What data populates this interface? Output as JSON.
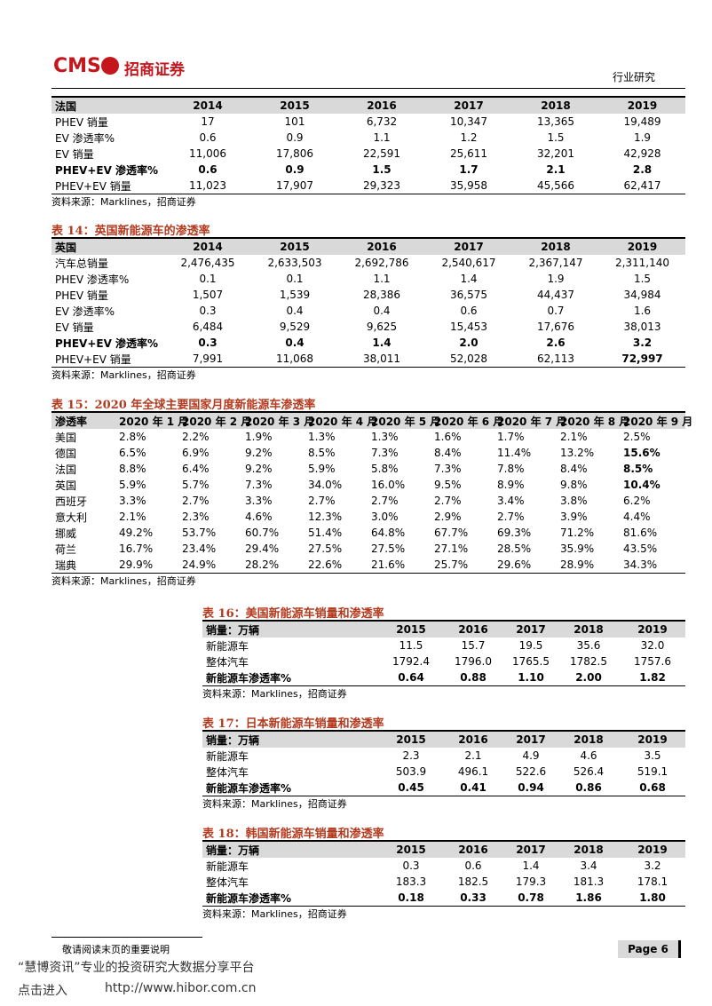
{
  "header": {
    "logo": "CMS",
    "company": "招商证券",
    "section": "行业研究"
  },
  "tables": [
    {
      "header": [
        "法国",
        "2014",
        "2015",
        "2016",
        "2017",
        "2018",
        "2019"
      ],
      "rows": [
        {
          "label": "PHEV 销量",
          "cells": [
            "17",
            "101",
            "6,732",
            "10,347",
            "13,365",
            "19,489"
          ]
        },
        {
          "label": "EV 渗透率%",
          "cells": [
            "0.6",
            "0.9",
            "1.1",
            "1.2",
            "1.5",
            "1.9"
          ]
        },
        {
          "label": "EV 销量",
          "cells": [
            "11,006",
            "17,806",
            "22,591",
            "25,611",
            "32,201",
            "42,928"
          ]
        },
        {
          "label": "PHEV+EV 渗透率%",
          "cells": [
            "0.6",
            "0.9",
            "1.5",
            "1.7",
            "2.1",
            "2.8"
          ],
          "bold": true
        },
        {
          "label": "PHEV+EV 销量",
          "cells": [
            "11,023",
            "17,907",
            "29,323",
            "35,958",
            "45,566",
            "62,417"
          ]
        }
      ],
      "source": "资料来源：Marklines，招商证券"
    },
    {
      "title": "表 14：英国新能源车的渗透率",
      "header": [
        "英国",
        "2014",
        "2015",
        "2016",
        "2017",
        "2018",
        "2019"
      ],
      "rows": [
        {
          "label": "汽车总销量",
          "cells": [
            "2,476,435",
            "2,633,503",
            "2,692,786",
            "2,540,617",
            "2,367,147",
            "2,311,140"
          ]
        },
        {
          "label": "PHEV 渗透率%",
          "cells": [
            "0.1",
            "0.1",
            "1.1",
            "1.4",
            "1.9",
            "1.5"
          ]
        },
        {
          "label": "PHEV 销量",
          "cells": [
            "1,507",
            "1,539",
            "28,386",
            "36,575",
            "44,437",
            "34,984"
          ]
        },
        {
          "label": "EV 渗透率%",
          "cells": [
            "0.3",
            "0.4",
            "0.4",
            "0.6",
            "0.7",
            "1.6"
          ]
        },
        {
          "label": "EV 销量",
          "cells": [
            "6,484",
            "9,529",
            "9,625",
            "15,453",
            "17,676",
            "38,013"
          ]
        },
        {
          "label": "PHEV+EV 渗透率%",
          "cells": [
            "0.3",
            "0.4",
            "1.4",
            "2.0",
            "2.6",
            "3.2"
          ],
          "bold": true
        },
        {
          "label": "PHEV+EV 销量",
          "cells": [
            "7,991",
            "11,068",
            "38,011",
            "52,028",
            "62,113",
            "72,997"
          ],
          "bold_last": true
        }
      ],
      "source": "资料来源：Marklines，招商证券"
    },
    {
      "title": "表 15：2020 年全球主要国家月度新能源车渗透率",
      "header": [
        "渗透率",
        "2020 年 1 月",
        "2020 年 2 月",
        "2020 年 3 月",
        "2020 年 4 月",
        "2020 年 5 月",
        "2020 年 6 月",
        "2020 年 7 月",
        "2020 年 8 月",
        "2020 年 9 月"
      ],
      "rows": [
        {
          "label": "美国",
          "cells": [
            "2.8%",
            "2.2%",
            "1.9%",
            "1.3%",
            "1.3%",
            "1.6%",
            "1.7%",
            "2.1%",
            "2.5%"
          ]
        },
        {
          "label": "德国",
          "cells": [
            "6.5%",
            "6.9%",
            "9.2%",
            "8.5%",
            "7.3%",
            "8.4%",
            "11.4%",
            "13.2%",
            "15.6%"
          ],
          "bold_last": true
        },
        {
          "label": "法国",
          "cells": [
            "8.8%",
            "6.4%",
            "9.2%",
            "5.9%",
            "5.8%",
            "7.3%",
            "7.8%",
            "8.4%",
            "8.5%"
          ],
          "bold_last": true
        },
        {
          "label": "英国",
          "cells": [
            "5.9%",
            "5.7%",
            "7.3%",
            "34.0%",
            "16.0%",
            "9.5%",
            "8.9%",
            "9.8%",
            "10.4%"
          ],
          "bold_last": true
        },
        {
          "label": "西班牙",
          "cells": [
            "3.3%",
            "2.7%",
            "3.3%",
            "2.7%",
            "2.7%",
            "2.7%",
            "3.4%",
            "3.8%",
            "6.2%"
          ]
        },
        {
          "label": "意大利",
          "cells": [
            "2.1%",
            "2.3%",
            "4.6%",
            "12.3%",
            "3.0%",
            "2.9%",
            "2.7%",
            "3.9%",
            "4.4%"
          ]
        },
        {
          "label": "挪威",
          "cells": [
            "49.2%",
            "53.7%",
            "60.7%",
            "51.4%",
            "64.8%",
            "67.7%",
            "69.3%",
            "71.2%",
            "81.6%"
          ]
        },
        {
          "label": "荷兰",
          "cells": [
            "16.7%",
            "23.4%",
            "29.4%",
            "27.5%",
            "27.5%",
            "27.1%",
            "28.5%",
            "35.9%",
            "43.5%"
          ]
        },
        {
          "label": "瑞典",
          "cells": [
            "29.9%",
            "24.9%",
            "28.2%",
            "22.6%",
            "21.6%",
            "25.7%",
            "29.6%",
            "28.9%",
            "34.3%"
          ]
        }
      ],
      "source": "资料来源：Marklines，招商证券"
    },
    {
      "title": "表 16：美国新能源车销量和渗透率",
      "header": [
        "销量：万辆",
        "2015",
        "2016",
        "2017",
        "2018",
        "2019"
      ],
      "rows": [
        {
          "label": "新能源车",
          "cells": [
            "11.5",
            "15.7",
            "19.5",
            "35.6",
            "32.0"
          ]
        },
        {
          "label": "整体汽车",
          "cells": [
            "1792.4",
            "1796.0",
            "1765.5",
            "1782.5",
            "1757.6"
          ]
        },
        {
          "label": "新能源车渗透率%",
          "cells": [
            "0.64",
            "0.88",
            "1.10",
            "2.00",
            "1.82"
          ],
          "bold": true
        }
      ],
      "source": "资料来源：Marklines，招商证券"
    },
    {
      "title": "表 17：日本新能源车销量和渗透率",
      "header": [
        "销量：万辆",
        "2015",
        "2016",
        "2017",
        "2018",
        "2019"
      ],
      "rows": [
        {
          "label": "新能源车",
          "cells": [
            "2.3",
            "2.1",
            "4.9",
            "4.6",
            "3.5"
          ]
        },
        {
          "label": "整体汽车",
          "cells": [
            "503.9",
            "496.1",
            "522.6",
            "526.4",
            "519.1"
          ]
        },
        {
          "label": "新能源车渗透率%",
          "cells": [
            "0.45",
            "0.41",
            "0.94",
            "0.86",
            "0.68"
          ],
          "bold": true
        }
      ],
      "source": "资料来源：Marklines，招商证券"
    },
    {
      "title": "表 18：韩国新能源车销量和渗透率",
      "header": [
        "销量：万辆",
        "2015",
        "2016",
        "2017",
        "2018",
        "2019"
      ],
      "rows": [
        {
          "label": "新能源车",
          "cells": [
            "0.3",
            "0.6",
            "1.4",
            "3.4",
            "3.2"
          ]
        },
        {
          "label": "整体汽车",
          "cells": [
            "183.3",
            "182.5",
            "179.3",
            "181.3",
            "178.1"
          ]
        },
        {
          "label": "新能源车渗透率%",
          "cells": [
            "0.18",
            "0.33",
            "0.78",
            "1.86",
            "1.80"
          ],
          "bold": true
        }
      ],
      "source": "资料来源：Marklines，招商证券"
    }
  ],
  "footer": {
    "notice": "敬请阅读末页的重要说明",
    "page": "Page 6",
    "banner": "“慧博资讯”专业的投资研究大数据分享平台",
    "link_prefix": "点击进入",
    "link": "http://www.hibor.com.cn"
  }
}
